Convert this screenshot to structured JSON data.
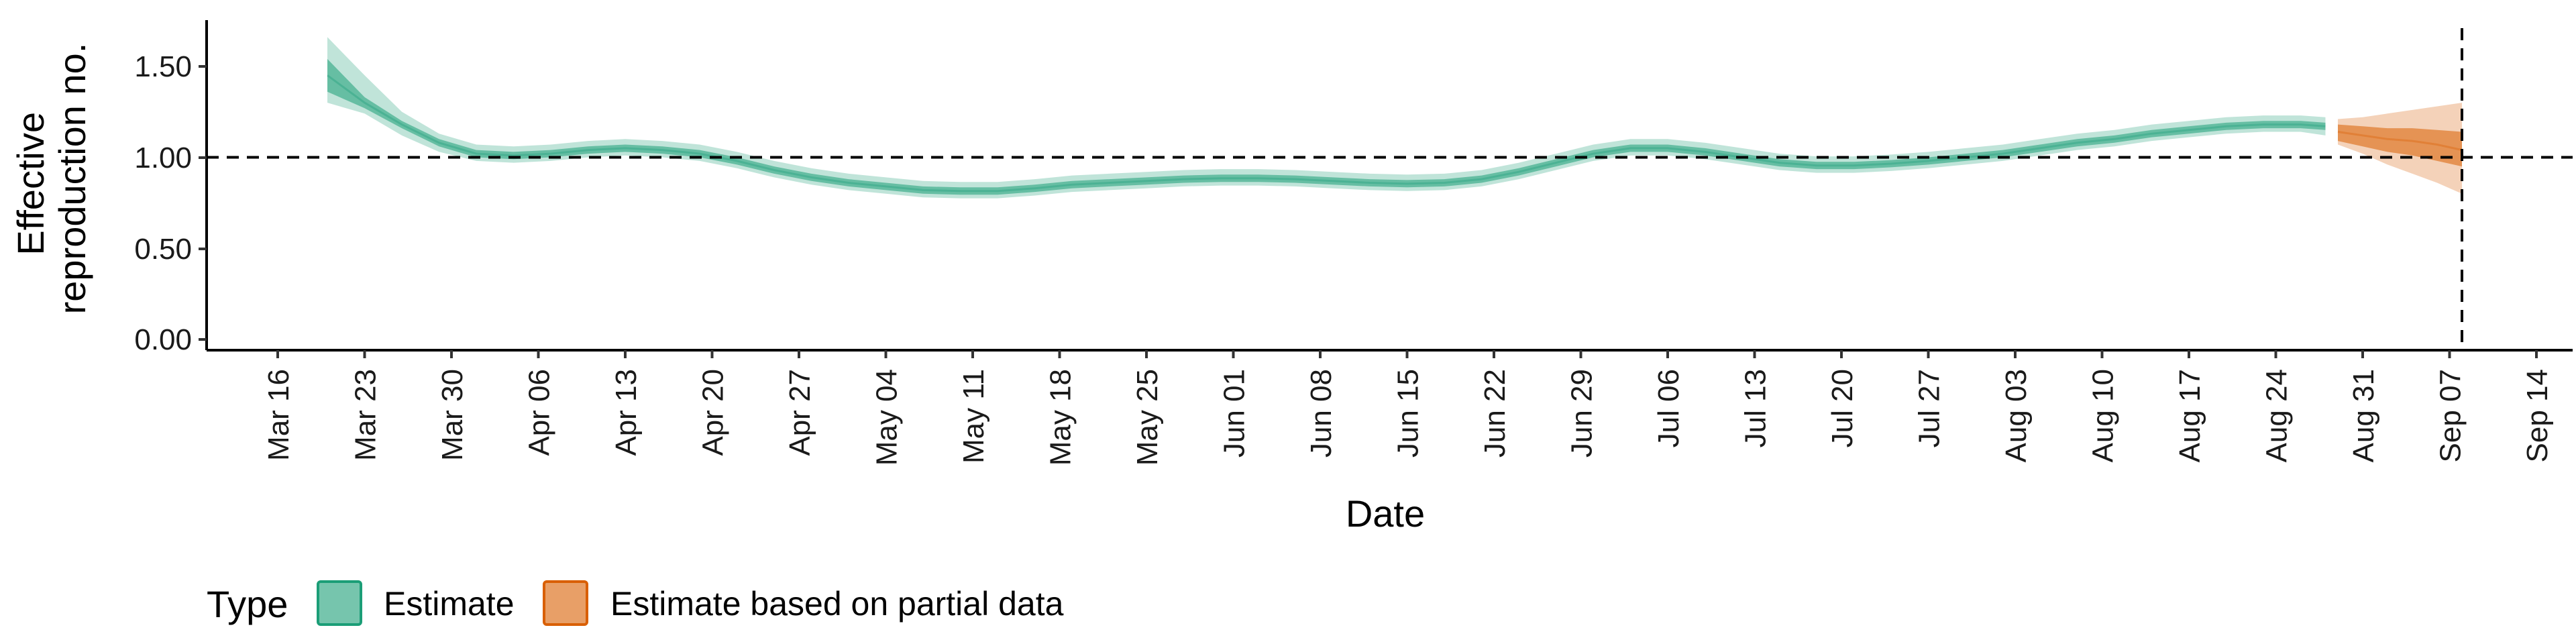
{
  "chart_data": {
    "type": "area",
    "title": "",
    "xlabel": "Date",
    "ylabel_lines": [
      "Effective",
      "reproduction no."
    ],
    "y_ticks": [
      "0.00",
      "0.50",
      "1.00",
      "1.50"
    ],
    "ylim": [
      0,
      1.72
    ],
    "x_ticks": [
      "Mar 16",
      "Mar 23",
      "Mar 30",
      "Apr 06",
      "Apr 13",
      "Apr 20",
      "Apr 27",
      "May 04",
      "May 11",
      "May 18",
      "May 25",
      "Jun 01",
      "Jun 08",
      "Jun 15",
      "Jun 22",
      "Jun 29",
      "Jul 06",
      "Jul 13",
      "Jul 20",
      "Jul 27",
      "Aug 03",
      "Aug 10",
      "Aug 17",
      "Aug 24",
      "Aug 31",
      "Sep 07",
      "Sep 14"
    ],
    "reference_line": {
      "y": 1.0,
      "style": "dashed"
    },
    "vertical_reference": {
      "x": "Sep 08",
      "style": "dashed"
    },
    "legend": {
      "title": "Type",
      "position": "bottom-left",
      "items": [
        {
          "label": "Estimate",
          "color": "#1b9e77"
        },
        {
          "label": "Estimate based on partial data",
          "color": "#d95f02"
        }
      ]
    },
    "series": [
      {
        "name": "Estimate",
        "color": "#1b9e77",
        "x": [
          "Mar 20",
          "Mar 23",
          "Mar 26",
          "Mar 29",
          "Apr 01",
          "Apr 04",
          "Apr 07",
          "Apr 10",
          "Apr 13",
          "Apr 16",
          "Apr 19",
          "Apr 22",
          "Apr 25",
          "Apr 28",
          "May 01",
          "May 04",
          "May 07",
          "May 10",
          "May 13",
          "May 16",
          "May 19",
          "May 22",
          "May 25",
          "May 28",
          "May 31",
          "Jun 03",
          "Jun 06",
          "Jun 09",
          "Jun 12",
          "Jun 15",
          "Jun 18",
          "Jun 21",
          "Jun 24",
          "Jun 27",
          "Jun 30",
          "Jul 03",
          "Jul 06",
          "Jul 09",
          "Jul 12",
          "Jul 15",
          "Jul 18",
          "Jul 21",
          "Jul 24",
          "Jul 27",
          "Jul 30",
          "Aug 02",
          "Aug 05",
          "Aug 08",
          "Aug 11",
          "Aug 14",
          "Aug 17",
          "Aug 20",
          "Aug 23",
          "Aug 26",
          "Aug 28"
        ],
        "median": [
          1.45,
          1.3,
          1.18,
          1.08,
          1.02,
          1.01,
          1.02,
          1.04,
          1.05,
          1.04,
          1.02,
          0.98,
          0.93,
          0.89,
          0.86,
          0.84,
          0.82,
          0.815,
          0.815,
          0.83,
          0.85,
          0.86,
          0.87,
          0.88,
          0.885,
          0.885,
          0.88,
          0.87,
          0.86,
          0.855,
          0.86,
          0.88,
          0.92,
          0.97,
          1.02,
          1.05,
          1.05,
          1.03,
          1.0,
          0.97,
          0.955,
          0.955,
          0.965,
          0.98,
          1.0,
          1.02,
          1.05,
          1.08,
          1.1,
          1.13,
          1.15,
          1.17,
          1.18,
          1.18,
          1.17
        ],
        "lower_50": [
          1.36,
          1.27,
          1.16,
          1.06,
          1.0,
          0.99,
          1.0,
          1.02,
          1.03,
          1.02,
          1.0,
          0.96,
          0.91,
          0.87,
          0.84,
          0.82,
          0.8,
          0.795,
          0.795,
          0.81,
          0.83,
          0.84,
          0.85,
          0.86,
          0.865,
          0.865,
          0.86,
          0.85,
          0.84,
          0.835,
          0.84,
          0.86,
          0.9,
          0.95,
          1.0,
          1.03,
          1.03,
          1.01,
          0.98,
          0.95,
          0.935,
          0.935,
          0.945,
          0.96,
          0.98,
          1.0,
          1.03,
          1.06,
          1.08,
          1.11,
          1.13,
          1.15,
          1.16,
          1.16,
          1.15
        ],
        "upper_50": [
          1.54,
          1.33,
          1.2,
          1.1,
          1.04,
          1.03,
          1.04,
          1.06,
          1.07,
          1.06,
          1.04,
          1.0,
          0.95,
          0.91,
          0.88,
          0.86,
          0.84,
          0.835,
          0.835,
          0.85,
          0.87,
          0.88,
          0.89,
          0.9,
          0.905,
          0.905,
          0.9,
          0.89,
          0.88,
          0.875,
          0.88,
          0.9,
          0.94,
          0.99,
          1.04,
          1.07,
          1.07,
          1.05,
          1.02,
          0.99,
          0.975,
          0.975,
          0.985,
          1.0,
          1.02,
          1.04,
          1.07,
          1.1,
          1.12,
          1.15,
          1.17,
          1.19,
          1.2,
          1.2,
          1.19
        ],
        "lower_90": [
          1.3,
          1.24,
          1.12,
          1.03,
          0.98,
          0.97,
          0.98,
          1.0,
          1.01,
          1.0,
          0.98,
          0.94,
          0.89,
          0.85,
          0.82,
          0.8,
          0.78,
          0.775,
          0.775,
          0.79,
          0.81,
          0.82,
          0.83,
          0.84,
          0.845,
          0.845,
          0.84,
          0.83,
          0.82,
          0.815,
          0.82,
          0.84,
          0.88,
          0.93,
          0.98,
          1.01,
          1.01,
          0.99,
          0.96,
          0.93,
          0.915,
          0.915,
          0.925,
          0.94,
          0.96,
          0.98,
          1.01,
          1.04,
          1.06,
          1.09,
          1.11,
          1.13,
          1.14,
          1.14,
          1.12
        ],
        "upper_90": [
          1.66,
          1.45,
          1.25,
          1.13,
          1.07,
          1.06,
          1.07,
          1.09,
          1.1,
          1.09,
          1.07,
          1.03,
          0.98,
          0.94,
          0.91,
          0.89,
          0.87,
          0.865,
          0.865,
          0.88,
          0.9,
          0.91,
          0.92,
          0.93,
          0.935,
          0.935,
          0.93,
          0.92,
          0.91,
          0.905,
          0.91,
          0.93,
          0.97,
          1.02,
          1.07,
          1.1,
          1.1,
          1.08,
          1.05,
          1.02,
          1.005,
          1.005,
          1.015,
          1.03,
          1.05,
          1.07,
          1.1,
          1.13,
          1.15,
          1.18,
          1.2,
          1.22,
          1.23,
          1.23,
          1.22
        ]
      },
      {
        "name": "Estimate based on partial data",
        "color": "#d95f02",
        "x": [
          "Aug 29",
          "Aug 31",
          "Sep 02",
          "Sep 04",
          "Sep 06",
          "Sep 08"
        ],
        "median": [
          1.14,
          1.12,
          1.1,
          1.09,
          1.07,
          1.04
        ],
        "lower_50": [
          1.09,
          1.06,
          1.03,
          1.01,
          0.98,
          0.95
        ],
        "upper_50": [
          1.18,
          1.17,
          1.16,
          1.16,
          1.15,
          1.14
        ],
        "lower_90": [
          1.07,
          1.02,
          0.96,
          0.91,
          0.86,
          0.8
        ],
        "upper_90": [
          1.21,
          1.22,
          1.24,
          1.26,
          1.28,
          1.3
        ]
      }
    ]
  }
}
